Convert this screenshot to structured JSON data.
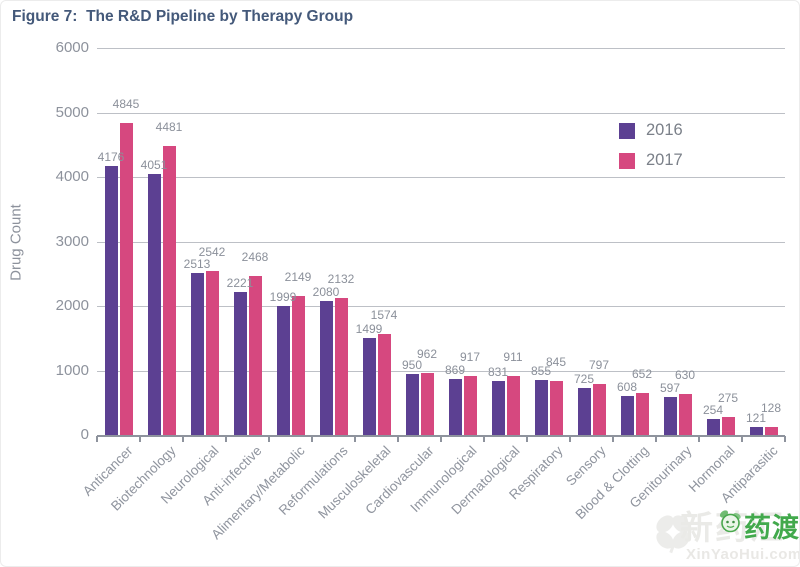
{
  "figure_title": "Figure 7:  The R&D Pipeline by Therapy Group",
  "chart_data": {
    "type": "bar",
    "title": "The R&D Pipeline by Therapy Group",
    "xlabel": "",
    "ylabel": "Drug Count",
    "ylim": [
      0,
      6000
    ],
    "yticks": [
      0,
      1000,
      2000,
      3000,
      4000,
      5000,
      6000
    ],
    "grid": true,
    "legend_position": "upper-right",
    "categories": [
      "Anticancer",
      "Biotechnology",
      "Neurological",
      "Anti-infective",
      "Alimentary/Metabolic",
      "Reformulations",
      "Musculoskeletal",
      "Cardiovascular",
      "Immunological",
      "Dermatological",
      "Respiratory",
      "Sensory",
      "Blood & Clotting",
      "Genitourinary",
      "Hormonal",
      "Antiparasitic"
    ],
    "series": [
      {
        "name": "2016",
        "color": "#5c4092",
        "values": [
          4176,
          4051,
          2513,
          2221,
          1999,
          2080,
          1499,
          950,
          869,
          831,
          855,
          725,
          608,
          597,
          254,
          121
        ]
      },
      {
        "name": "2017",
        "color": "#d6487f",
        "values": [
          4845,
          4481,
          2542,
          2468,
          2149,
          2132,
          1574,
          962,
          917,
          911,
          845,
          797,
          652,
          630,
          275,
          128
        ]
      }
    ]
  },
  "watermark": {
    "faint_text": "新药汇",
    "url_text": "XinYaoHui.com",
    "brand_text": "药渡",
    "brand_color": "#42a94c"
  },
  "ui_colors": {
    "title": "#44597a",
    "axis_text": "#8d929c",
    "value_label": "#8b909a",
    "gridline": "#bdc0c6"
  }
}
